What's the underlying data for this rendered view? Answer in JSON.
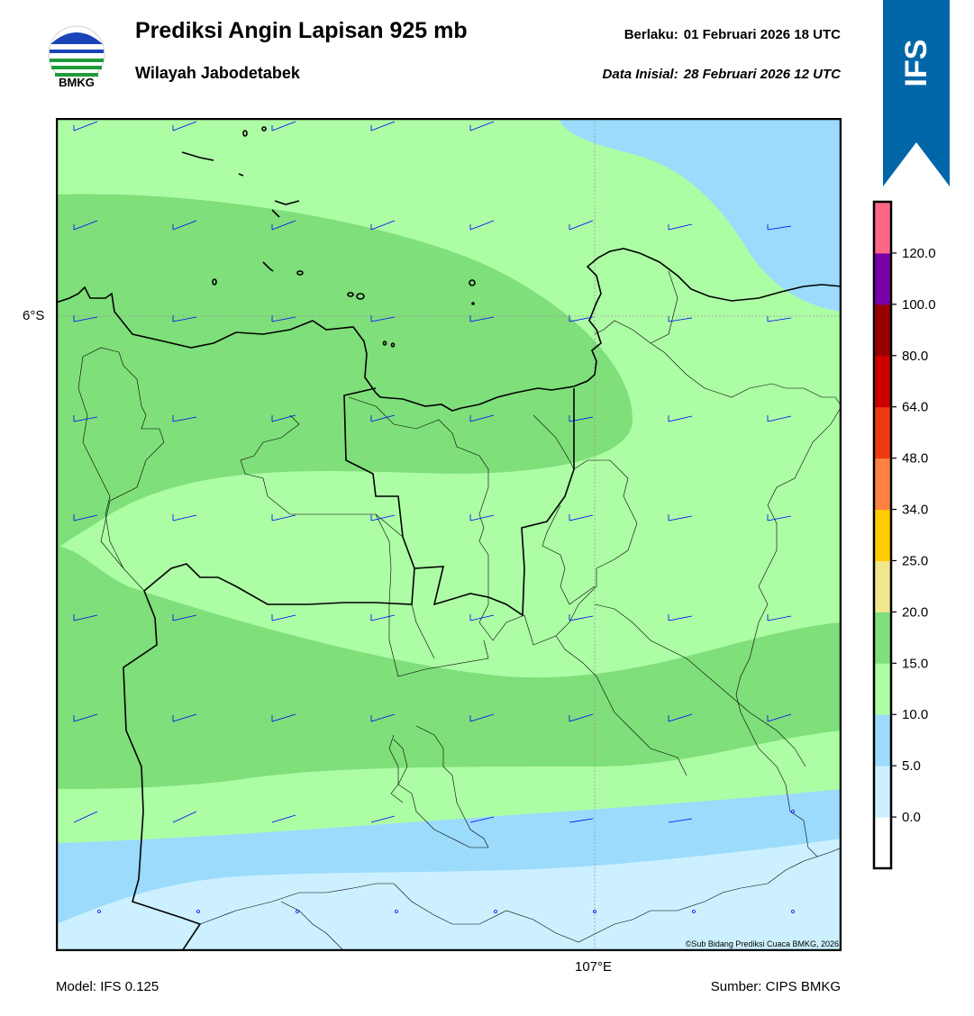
{
  "header": {
    "title": "Prediksi Angin Lapisan 925 mb",
    "subtitle": "Wilayah Jabodetabek",
    "valid_label": "Berlaku:",
    "valid_value": "01 Februari 2026 18 UTC",
    "init_label": "Data Inisial:",
    "init_value": "28 Februari 2026 12 UTC"
  },
  "logo": {
    "text": "BMKG",
    "icon": "bmkg-logo"
  },
  "ribbon": {
    "text": "IFS",
    "color": "#0066a8"
  },
  "map": {
    "lat_label": "6°S",
    "lon_label": "107°E",
    "credit": "©Sub Bidang Prediksi Cuaca BMKG, 2026",
    "palette": {
      "lt5": "#ccf0ff",
      "5to10": "#9cdbfb",
      "10to15": "#adfda5",
      "15to20": "#7fdf7a",
      "coast": "#000000",
      "barb": "#0000ff"
    }
  },
  "colorbar": {
    "labels": [
      "0.0",
      "5.0",
      "10.0",
      "15.0",
      "20.0",
      "25.0",
      "34.0",
      "48.0",
      "64.0",
      "80.0",
      "100.0",
      "120.0"
    ],
    "colors": [
      "#ffffff",
      "#ccf0ff",
      "#9cdbfb",
      "#adfda5",
      "#7fdf7a",
      "#f0e68c",
      "#ffcc00",
      "#ff8040",
      "#ee3a10",
      "#cc0000",
      "#990000",
      "#7a00a8",
      "#ff6688"
    ]
  },
  "footer": {
    "model": "Model: IFS 0.125",
    "source": "Sumber: CIPS BMKG"
  }
}
